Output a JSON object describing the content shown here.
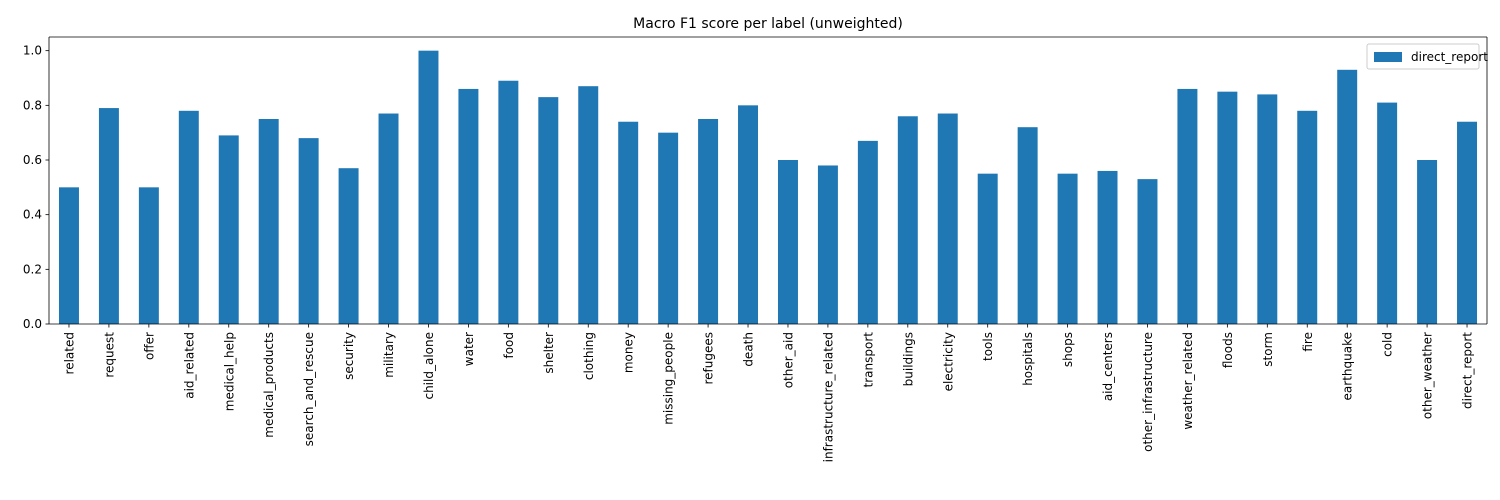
{
  "chart_data": {
    "type": "bar",
    "title": "Macro F1 score per label (unweighted)",
    "xlabel": "",
    "ylabel": "",
    "ylim": [
      0,
      1.05
    ],
    "yticks": [
      0.0,
      0.2,
      0.4,
      0.6,
      0.8,
      1.0
    ],
    "ytick_labels": [
      "0.0",
      "0.2",
      "0.4",
      "0.6",
      "0.8",
      "1.0"
    ],
    "grid": false,
    "legend_position": "top-right",
    "categories": [
      "related",
      "request",
      "offer",
      "aid_related",
      "medical_help",
      "medical_products",
      "search_and_rescue",
      "security",
      "military",
      "child_alone",
      "water",
      "food",
      "shelter",
      "clothing",
      "money",
      "missing_people",
      "refugees",
      "death",
      "other_aid",
      "infrastructure_related",
      "transport",
      "buildings",
      "electricity",
      "tools",
      "hospitals",
      "shops",
      "aid_centers",
      "other_infrastructure",
      "weather_related",
      "floods",
      "storm",
      "fire",
      "earthquake",
      "cold",
      "other_weather",
      "direct_report"
    ],
    "series": [
      {
        "name": "direct_report",
        "color": "#1f77b4",
        "values": [
          0.5,
          0.79,
          0.5,
          0.78,
          0.69,
          0.75,
          0.68,
          0.57,
          0.77,
          1.0,
          0.86,
          0.89,
          0.83,
          0.87,
          0.74,
          0.7,
          0.75,
          0.8,
          0.6,
          0.58,
          0.67,
          0.76,
          0.77,
          0.55,
          0.72,
          0.55,
          0.56,
          0.53,
          0.86,
          0.85,
          0.84,
          0.78,
          0.93,
          0.81,
          0.6,
          0.74
        ]
      }
    ]
  }
}
